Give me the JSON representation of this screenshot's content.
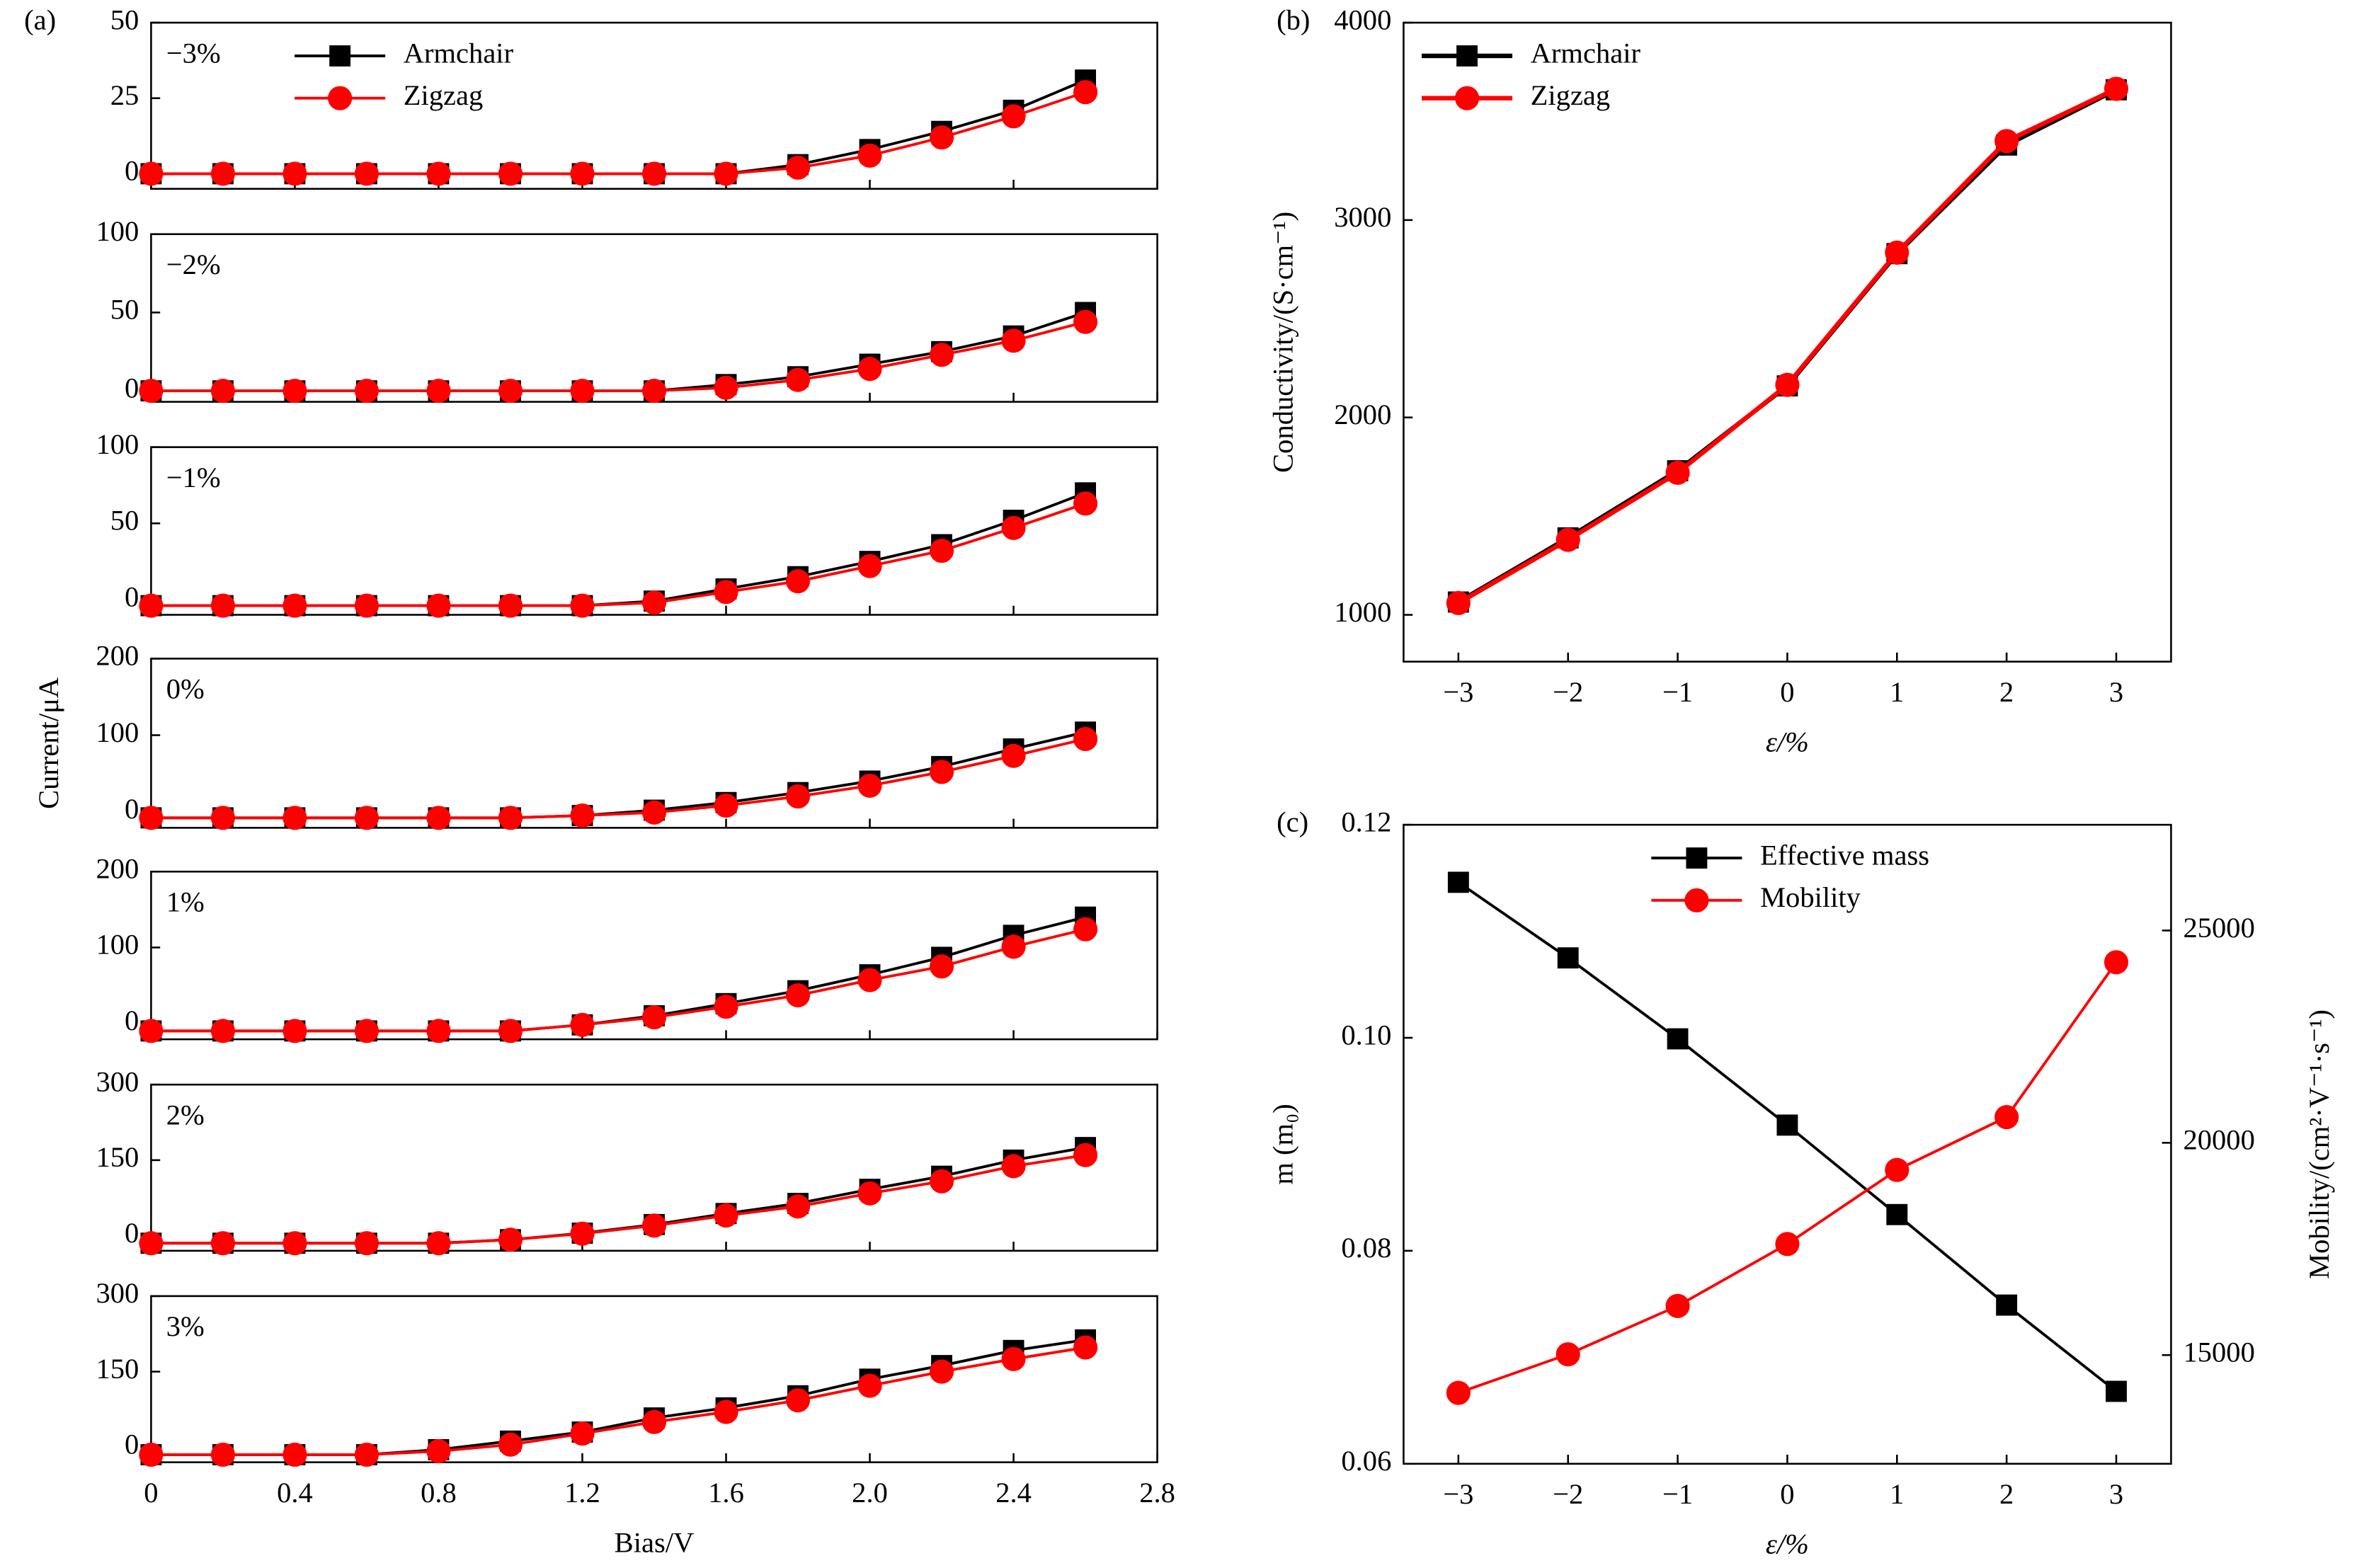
{
  "chart_data": [
    {
      "type": "line",
      "panel_label": "(a)",
      "annotation": "−3%",
      "legend": "upper left",
      "x": [
        0,
        0.2,
        0.4,
        0.6,
        0.8,
        1.0,
        1.2,
        1.4,
        1.6,
        1.8,
        2.0,
        2.2,
        2.4,
        2.6
      ],
      "xlim": [
        0,
        2.8
      ],
      "ylim": [
        -5,
        50
      ],
      "yticks": [
        0,
        25,
        50
      ],
      "series": [
        {
          "name": "Armchair",
          "color": "#000000",
          "marker": "square",
          "values": [
            0,
            0,
            0,
            0,
            0,
            0,
            0,
            0,
            0,
            3,
            8,
            14,
            21,
            31
          ]
        },
        {
          "name": "Zigzag",
          "color": "#ff0000",
          "marker": "circle",
          "values": [
            0,
            0,
            0,
            0,
            0,
            0,
            0,
            0,
            0,
            2,
            6,
            12,
            19,
            27
          ]
        }
      ]
    },
    {
      "type": "line",
      "annotation": "−2%",
      "x": [
        0,
        0.2,
        0.4,
        0.6,
        0.8,
        1.0,
        1.2,
        1.4,
        1.6,
        1.8,
        2.0,
        2.2,
        2.4,
        2.6
      ],
      "xlim": [
        0,
        2.8
      ],
      "ylim": [
        -7,
        100
      ],
      "yticks": [
        0,
        50,
        100
      ],
      "series": [
        {
          "name": "Armchair",
          "color": "#000000",
          "marker": "square",
          "values": [
            0,
            0,
            0,
            0,
            0,
            0,
            0,
            0,
            4,
            9,
            17,
            25,
            35,
            50
          ]
        },
        {
          "name": "Zigzag",
          "color": "#ff0000",
          "marker": "circle",
          "values": [
            0,
            0,
            0,
            0,
            0,
            0,
            0,
            0,
            2,
            7,
            14,
            23,
            32,
            44
          ]
        }
      ]
    },
    {
      "type": "line",
      "annotation": "−1%",
      "x": [
        0,
        0.2,
        0.4,
        0.6,
        0.8,
        1.0,
        1.2,
        1.4,
        1.6,
        1.8,
        2.0,
        2.2,
        2.4,
        2.6
      ],
      "xlim": [
        0,
        2.8
      ],
      "ylim": [
        -10,
        100
      ],
      "yticks": [
        0,
        50,
        100
      ],
      "series": [
        {
          "name": "Armchair",
          "color": "#000000",
          "marker": "square",
          "values": [
            -4,
            -4,
            -4,
            -4,
            -4,
            -4,
            -4,
            -1,
            7,
            15,
            25,
            36,
            52,
            70
          ]
        },
        {
          "name": "Zigzag",
          "color": "#ff0000",
          "marker": "circle",
          "values": [
            -4,
            -4,
            -4,
            -4,
            -4,
            -4,
            -4,
            -2,
            5,
            12,
            22,
            32,
            47,
            63
          ]
        }
      ]
    },
    {
      "type": "line",
      "annotation": "0%",
      "ylabel": "Current/μA",
      "x": [
        0,
        0.2,
        0.4,
        0.6,
        0.8,
        1.0,
        1.2,
        1.4,
        1.6,
        1.8,
        2.0,
        2.2,
        2.4,
        2.6
      ],
      "xlim": [
        0,
        2.8
      ],
      "ylim": [
        -21,
        200
      ],
      "yticks": [
        0,
        100,
        200
      ],
      "series": [
        {
          "name": "Armchair",
          "color": "#000000",
          "marker": "square",
          "values": [
            -8,
            -8,
            -8,
            -8,
            -8,
            -8,
            -5,
            2,
            12,
            25,
            40,
            59,
            82,
            104
          ]
        },
        {
          "name": "Zigzag",
          "color": "#ff0000",
          "marker": "circle",
          "values": [
            -8,
            -8,
            -8,
            -8,
            -8,
            -8,
            -5,
            -1,
            8,
            20,
            34,
            52,
            73,
            95
          ]
        }
      ]
    },
    {
      "type": "line",
      "annotation": "1%",
      "x": [
        0,
        0.2,
        0.4,
        0.6,
        0.8,
        1.0,
        1.2,
        1.4,
        1.6,
        1.8,
        2.0,
        2.2,
        2.4,
        2.6
      ],
      "xlim": [
        0,
        2.8
      ],
      "ylim": [
        -21,
        200
      ],
      "yticks": [
        0,
        100,
        200
      ],
      "series": [
        {
          "name": "Armchair",
          "color": "#000000",
          "marker": "square",
          "values": [
            -10,
            -10,
            -10,
            -10,
            -10,
            -10,
            -2,
            10,
            26,
            43,
            64,
            87,
            116,
            140
          ]
        },
        {
          "name": "Zigzag",
          "color": "#ff0000",
          "marker": "circle",
          "values": [
            -10,
            -10,
            -10,
            -10,
            -10,
            -10,
            -2,
            8,
            22,
            37,
            57,
            75,
            101,
            124
          ]
        }
      ]
    },
    {
      "type": "line",
      "annotation": "2%",
      "x": [
        0,
        0.2,
        0.4,
        0.6,
        0.8,
        1.0,
        1.2,
        1.4,
        1.6,
        1.8,
        2.0,
        2.2,
        2.4,
        2.6
      ],
      "xlim": [
        0,
        2.8
      ],
      "ylim": [
        -30,
        300
      ],
      "yticks": [
        0,
        150,
        300
      ],
      "series": [
        {
          "name": "Armchair",
          "color": "#000000",
          "marker": "square",
          "values": [
            -15,
            -15,
            -15,
            -15,
            -15,
            -8,
            5,
            22,
            44,
            64,
            92,
            118,
            150,
            175
          ]
        },
        {
          "name": "Zigzag",
          "color": "#ff0000",
          "marker": "circle",
          "values": [
            -15,
            -15,
            -15,
            -15,
            -15,
            -8,
            4,
            20,
            40,
            58,
            84,
            108,
            138,
            160
          ]
        }
      ]
    },
    {
      "type": "line",
      "annotation": "3%",
      "xlabel": "Bias/V",
      "x": [
        0,
        0.2,
        0.4,
        0.6,
        0.8,
        1.0,
        1.2,
        1.4,
        1.6,
        1.8,
        2.0,
        2.2,
        2.4,
        2.6
      ],
      "xlim": [
        0,
        2.8
      ],
      "xticks": [
        0,
        0.4,
        0.8,
        1.2,
        1.6,
        {
          "value": 2,
          "label": "2.0"
        },
        2.4,
        2.8
      ],
      "ylim": [
        -30,
        300
      ],
      "yticks": [
        0,
        150,
        300
      ],
      "series": [
        {
          "name": "Armchair",
          "color": "#000000",
          "marker": "square",
          "values": [
            -15,
            -15,
            -15,
            -15,
            -5,
            12,
            30,
            58,
            78,
            102,
            135,
            162,
            192,
            213
          ]
        },
        {
          "name": "Zigzag",
          "color": "#ff0000",
          "marker": "circle",
          "values": [
            -15,
            -15,
            -15,
            -15,
            -8,
            5,
            27,
            50,
            70,
            93,
            122,
            150,
            175,
            198
          ]
        }
      ]
    },
    {
      "type": "line",
      "panel_label": "(b)",
      "legend": "upper left",
      "xlabel": "ε/%",
      "ylabel": "Conductivity/(S·cm⁻¹)",
      "x": [
        -3,
        -2,
        -1,
        0,
        1,
        2,
        3
      ],
      "xlim": [
        -3.5,
        3.5
      ],
      "xticks": [
        {
          "value": -3,
          "label": "−3"
        },
        {
          "value": -2,
          "label": "−2"
        },
        {
          "value": -1,
          "label": "−1"
        },
        0,
        1,
        2,
        3
      ],
      "ylim": [
        763,
        4000
      ],
      "yticks": [
        1000,
        2000,
        3000,
        4000
      ],
      "series": [
        {
          "name": "Armchair",
          "color": "#000000",
          "marker": "square",
          "values": [
            1065,
            1390,
            1730,
            2160,
            2830,
            3380,
            3660
          ]
        },
        {
          "name": "Zigzag",
          "color": "#ff0000",
          "marker": "circle",
          "values": [
            1060,
            1380,
            1720,
            2165,
            2835,
            3400,
            3665
          ]
        }
      ]
    },
    {
      "type": "line",
      "panel_label": "(c)",
      "legend": "upper center",
      "xlabel": "ε/%",
      "ylabel": "m (m₀)",
      "y2label": "Mobility/(cm²·V⁻¹·s⁻¹)",
      "x": [
        -3,
        -2,
        -1,
        0,
        1,
        2,
        3
      ],
      "xlim": [
        -3.5,
        3.5
      ],
      "xticks": [
        {
          "value": -3,
          "label": "−3"
        },
        {
          "value": -2,
          "label": "−2"
        },
        {
          "value": -1,
          "label": "−1"
        },
        0,
        1,
        2,
        3
      ],
      "ylim": [
        0.06,
        0.12
      ],
      "yticks": [
        0.06,
        0.08,
        {
          "value": 0.1,
          "label": "0.10"
        },
        0.12
      ],
      "y2lim": [
        12440,
        27490
      ],
      "y2ticks": [
        15000,
        20000,
        25000
      ],
      "series": [
        {
          "name": "Effective mass",
          "color": "#000000",
          "marker": "square",
          "values": [
            0.1146,
            0.1075,
            0.0999,
            0.0918,
            0.0834,
            0.0749,
            0.0668
          ]
        },
        {
          "name": "Mobility",
          "color": "#ff0000",
          "marker": "circle",
          "axis": "y2",
          "values": [
            14110,
            15018,
            16157,
            17616,
            19360,
            20605,
            24253
          ]
        }
      ]
    }
  ]
}
